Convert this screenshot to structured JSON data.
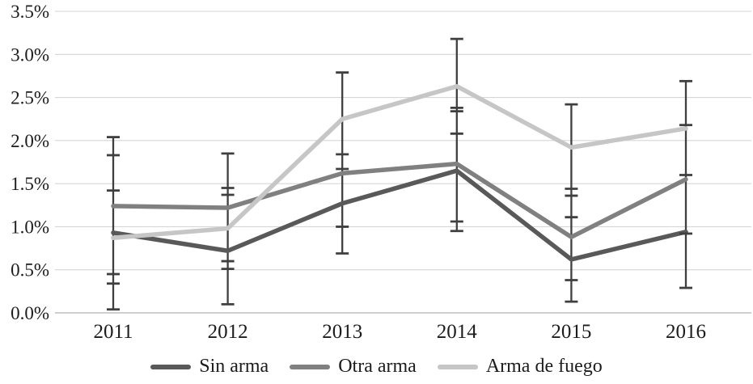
{
  "chart_data": {
    "type": "line",
    "title": "",
    "xlabel": "",
    "ylabel": "",
    "x_categories": [
      "2011",
      "2012",
      "2013",
      "2014",
      "2015",
      "2016"
    ],
    "ylim": [
      0,
      3.5
    ],
    "grid": true,
    "legend_position": "bottom",
    "y_axis": {
      "ticks": [
        {
          "v": 0.0,
          "label": "0.0%"
        },
        {
          "v": 0.5,
          "label": "0.5%"
        },
        {
          "v": 1.0,
          "label": "1.0%"
        },
        {
          "v": 1.5,
          "label": "1.5%"
        },
        {
          "v": 2.0,
          "label": "2.0%"
        },
        {
          "v": 2.5,
          "label": "2.5%"
        },
        {
          "v": 3.0,
          "label": "3.0%"
        },
        {
          "v": 3.5,
          "label": "3.5%"
        }
      ]
    },
    "series": [
      {
        "name": "Sin arma",
        "color": "#595959",
        "values": [
          0.93,
          0.72,
          1.27,
          1.65,
          0.62,
          0.94
        ]
      },
      {
        "name": "Otra arma",
        "color": "#808080",
        "values": [
          1.24,
          1.22,
          1.62,
          1.73,
          0.88,
          1.55
        ]
      },
      {
        "name": "Arma de fuego",
        "color": "#c6c6c6",
        "values": [
          0.87,
          0.98,
          2.25,
          2.63,
          1.92,
          2.14
        ]
      }
    ],
    "error_bars": {
      "per_year": [
        {
          "year": "2011",
          "low": 0.04,
          "high": 2.04,
          "ticks": [
            1.83,
            1.42,
            0.45,
            0.34
          ]
        },
        {
          "year": "2012",
          "low": 0.1,
          "high": 1.85,
          "ticks": [
            1.45,
            1.37,
            0.6,
            0.51
          ]
        },
        {
          "year": "2013",
          "low": 0.69,
          "high": 2.79,
          "ticks": [
            1.84,
            1.67,
            1.0
          ]
        },
        {
          "year": "2014",
          "low": 0.95,
          "high": 3.18,
          "ticks": [
            2.38,
            2.34,
            2.08,
            1.06
          ]
        },
        {
          "year": "2015",
          "low": 0.13,
          "high": 2.42,
          "ticks": [
            1.44,
            1.36,
            1.11,
            0.38
          ]
        },
        {
          "year": "2016",
          "low": 0.29,
          "high": 2.69,
          "ticks": [
            2.18,
            1.6,
            0.92
          ]
        }
      ]
    },
    "colors": {
      "gridline": "#d6d6d6",
      "axis_line": "#bdbdbd",
      "error_bar": "#3f3f3f",
      "text": "#1c1c1c"
    }
  }
}
